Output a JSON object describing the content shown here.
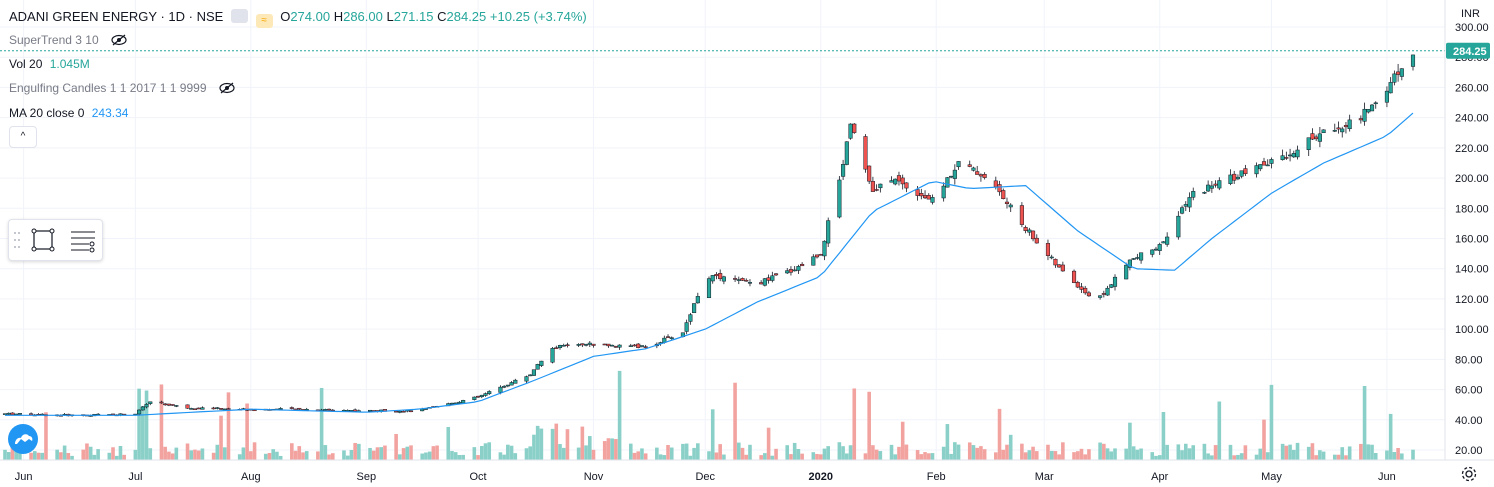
{
  "header": {
    "symbol": "ADANI GREEN ENERGY · 1D · NSE",
    "ohlc": {
      "o_label": "O",
      "o": "274.00",
      "h_label": "H",
      "h": "286.00",
      "l_label": "L",
      "l": "271.15",
      "c_label": "C",
      "c": "284.25",
      "change": "+10.25 (+3.74%)"
    }
  },
  "indicators": {
    "supertrend": "SuperTrend 3 10",
    "vol_label": "Vol 20",
    "vol_value": "1.045M",
    "engulfing": "Engulfing Candles 1 1 2017 1 1 9999",
    "ma_label": "MA 20 close 0",
    "ma_value": "243.34"
  },
  "collapse_button": "^",
  "icons": {
    "hide": "eye-crossed-icon",
    "rect": "rectangle-tool-icon",
    "lines": "lines-tool-icon",
    "logo": "tradingview-logo-icon",
    "settings": "gear-icon"
  },
  "colors": {
    "up": "#26a69a",
    "down": "#ef5350",
    "up_vol": "#8ad0c8",
    "down_vol": "#f2a3a0",
    "ma": "#2196f3",
    "price_line": "#26a69a"
  },
  "chart_data": {
    "type": "candlestick",
    "currency": "INR",
    "last_price": "284.25",
    "ylim": [
      15,
      305
    ],
    "y_ticks": [
      "20.00",
      "40.00",
      "60.00",
      "80.00",
      "100.00",
      "120.00",
      "140.00",
      "160.00",
      "180.00",
      "200.00",
      "220.00",
      "240.00",
      "260.00",
      "280.00",
      "300.00"
    ],
    "x_ticks": [
      "Jun",
      "Jul",
      "Aug",
      "Sep",
      "Oct",
      "Nov",
      "Dec",
      "2020",
      "Feb",
      "Mar",
      "Apr",
      "May",
      "Jun"
    ],
    "series": [
      {
        "name": "price",
        "type": "close_approx",
        "x": [
          "2019-05-27",
          "2019-06-15",
          "2019-07-01",
          "2019-07-05",
          "2019-07-15",
          "2019-08-01",
          "2019-08-15",
          "2019-09-01",
          "2019-09-15",
          "2019-10-01",
          "2019-10-15",
          "2019-10-21",
          "2019-11-01",
          "2019-11-15",
          "2019-11-25",
          "2019-12-01",
          "2019-12-15",
          "2019-12-25",
          "2020-01-01",
          "2020-01-07",
          "2020-01-09",
          "2020-01-15",
          "2020-01-20",
          "2020-01-31",
          "2020-02-07",
          "2020-02-15",
          "2020-02-24",
          "2020-03-05",
          "2020-03-15",
          "2020-03-24",
          "2020-04-01",
          "2020-04-10",
          "2020-04-20",
          "2020-05-01",
          "2020-05-15",
          "2020-05-25",
          "2020-06-01",
          "2020-06-05",
          "2020-06-08"
        ],
        "values": [
          44,
          43,
          44,
          52,
          48,
          47,
          47,
          46,
          46,
          55,
          70,
          88,
          90,
          88,
          98,
          135,
          130,
          140,
          150,
          210,
          238,
          190,
          200,
          185,
          210,
          200,
          170,
          140,
          118,
          145,
          155,
          190,
          200,
          210,
          230,
          240,
          260,
          275,
          284
        ]
      },
      {
        "name": "MA 20 close 0",
        "type": "ma",
        "x": [
          "2019-05-27",
          "2019-07-01",
          "2019-08-01",
          "2019-09-01",
          "2019-09-15",
          "2019-10-01",
          "2019-10-15",
          "2019-11-01",
          "2019-11-15",
          "2019-12-01",
          "2019-12-15",
          "2020-01-01",
          "2020-01-15",
          "2020-01-31",
          "2020-02-10",
          "2020-02-25",
          "2020-03-10",
          "2020-03-25",
          "2020-04-05",
          "2020-04-15",
          "2020-05-01",
          "2020-05-15",
          "2020-06-01",
          "2020-06-08"
        ],
        "values": [
          43,
          43,
          47,
          45,
          47,
          52,
          65,
          82,
          87,
          100,
          118,
          135,
          178,
          198,
          193,
          195,
          165,
          140,
          139,
          160,
          190,
          210,
          228,
          243
        ]
      }
    ],
    "volume": {
      "last": "1.045M"
    }
  }
}
